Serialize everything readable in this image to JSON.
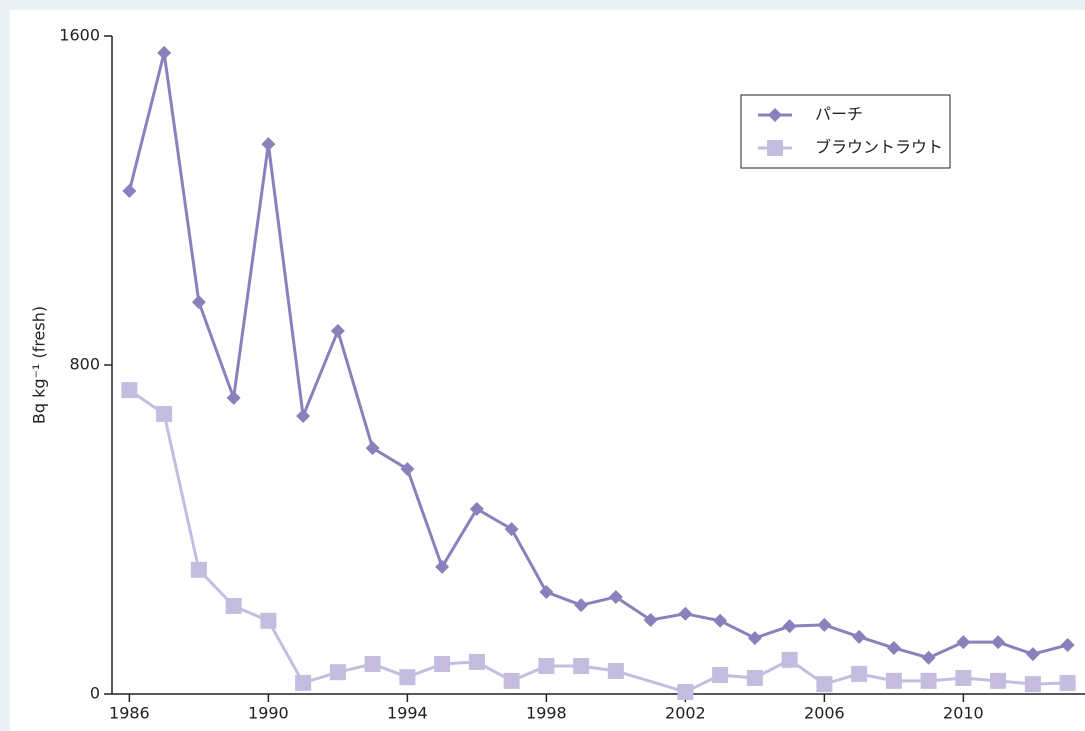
{
  "chart_data": {
    "type": "line",
    "y_label": "Bq kg⁻¹ (fresh)",
    "xlim": [
      1985.5,
      2013.5
    ],
    "xticks": [
      1986,
      1990,
      1994,
      1998,
      2002,
      2006,
      2010
    ],
    "ylim": [
      0,
      1600
    ],
    "yticks": [
      0,
      800,
      1600
    ],
    "legend": "upper right",
    "series": [
      {
        "name": "パーチ",
        "color": "#8b80bc",
        "marker": "diamond",
        "x": [
          1986,
          1987,
          1988,
          1989,
          1990,
          1991,
          1992,
          1993,
          1994,
          1995,
          1996,
          1997,
          1998,
          1999,
          2000,
          2001,
          2002,
          2003,
          2004,
          2005,
          2006,
          2007,
          2008,
          2009,
          2010,
          2011,
          2012,
          2013
        ],
        "values": [
          1223,
          1559,
          953,
          720,
          1337,
          676,
          883,
          598,
          547,
          309,
          450,
          401,
          248,
          216,
          236,
          180,
          195,
          178,
          136,
          165,
          168,
          139,
          112,
          88,
          126,
          126,
          97,
          119
        ]
      },
      {
        "name": "ブラウントラウト",
        "color": "#c4bde0",
        "marker": "square",
        "x": [
          1986,
          1987,
          1988,
          1989,
          1990,
          1991,
          1992,
          1993,
          1994,
          1995,
          1996,
          1997,
          1998,
          1999,
          2000,
          2002,
          2003,
          2004,
          2005,
          2006,
          2007,
          2008,
          2009,
          2010,
          2011,
          2012,
          2013
        ],
        "values": [
          739,
          681,
          302,
          214,
          178,
          27,
          53,
          73,
          41,
          73,
          78,
          32,
          68,
          68,
          56,
          5,
          46,
          39,
          83,
          24,
          49,
          32,
          32,
          39,
          32,
          24,
          27
        ]
      }
    ]
  }
}
